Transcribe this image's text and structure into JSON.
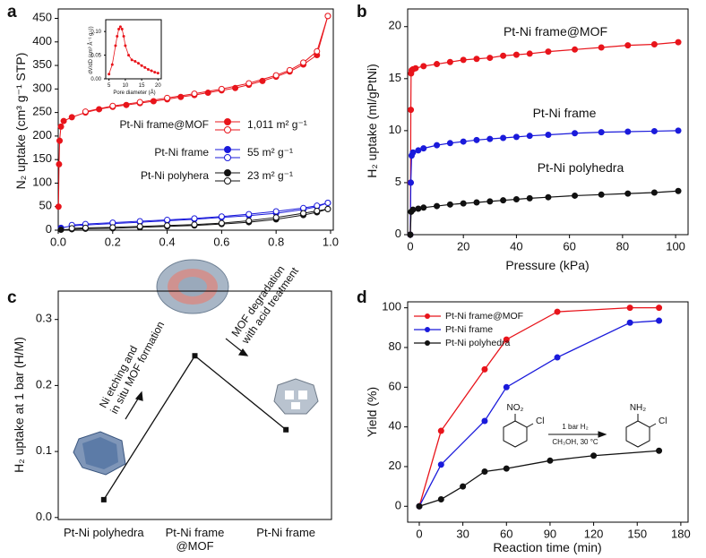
{
  "chart_data": [
    {
      "label": "a",
      "type": "line",
      "ylabel": "N₂ uptake (cm³ g⁻¹ STP)",
      "xlim": [
        0,
        1.01
      ],
      "ylim": [
        0,
        470
      ],
      "xticks": [
        {
          "value": 0,
          "label": "0.0"
        },
        0.2,
        0.4,
        0.6,
        0.8,
        {
          "value": 1,
          "label": "1.0"
        }
      ],
      "yticks": [
        0,
        50,
        100,
        150,
        200,
        250,
        300,
        350,
        400,
        450
      ],
      "series": [
        {
          "name": "Pt-Ni frame@MOF",
          "color": "#e8141b",
          "marker": "filled",
          "x": [
            0.001,
            0.003,
            0.005,
            0.01,
            0.02,
            0.05,
            0.1,
            0.15,
            0.2,
            0.25,
            0.3,
            0.35,
            0.4,
            0.45,
            0.5,
            0.55,
            0.6,
            0.65,
            0.7,
            0.75,
            0.8,
            0.85,
            0.9,
            0.95,
            0.99
          ],
          "values": [
            50,
            140,
            190,
            220,
            232,
            240,
            250,
            257,
            262,
            266,
            270,
            274,
            278,
            283,
            287,
            292,
            297,
            302,
            309,
            317,
            326,
            337,
            352,
            372,
            455
          ]
        },
        {
          "color": "#e8141b",
          "marker": "open",
          "x": [
            0.99,
            0.95,
            0.9,
            0.85,
            0.8,
            0.7,
            0.6,
            0.5,
            0.4,
            0.3,
            0.2,
            0.1
          ],
          "values": [
            455,
            380,
            356,
            340,
            329,
            312,
            300,
            290,
            281,
            272,
            264,
            252
          ]
        },
        {
          "name": "Pt-Ni frame",
          "color": "#1a1adb",
          "marker": "filled",
          "x": [
            0.01,
            0.05,
            0.1,
            0.2,
            0.3,
            0.4,
            0.5,
            0.6,
            0.7,
            0.8,
            0.9,
            0.95,
            0.99
          ],
          "values": [
            5,
            9,
            11,
            14,
            17,
            20,
            23,
            27,
            31,
            36,
            44,
            50,
            58
          ]
        },
        {
          "color": "#1a1adb",
          "marker": "open",
          "x": [
            0.99,
            0.95,
            0.9,
            0.8,
            0.7,
            0.6,
            0.5,
            0.4,
            0.3,
            0.2,
            0.1,
            0.05
          ],
          "values": [
            58,
            52,
            47,
            40,
            34,
            29,
            25,
            22,
            19,
            16,
            13,
            11
          ]
        },
        {
          "name": "Pt-Ni polyhera",
          "color": "#111111",
          "marker": "filled",
          "x": [
            0.01,
            0.05,
            0.1,
            0.2,
            0.3,
            0.4,
            0.5,
            0.6,
            0.7,
            0.8,
            0.9,
            0.95,
            0.99
          ],
          "values": [
            1,
            2,
            3,
            4,
            6,
            8,
            10,
            13,
            17,
            23,
            32,
            38,
            45
          ]
        },
        {
          "color": "#111111",
          "marker": "open",
          "x": [
            0.99,
            0.95,
            0.9,
            0.8,
            0.7,
            0.6,
            0.5,
            0.4,
            0.3,
            0.2,
            0.1,
            0.05
          ],
          "values": [
            45,
            41,
            36,
            27,
            20,
            15,
            12,
            10,
            8,
            6,
            5,
            4
          ]
        }
      ],
      "annotations": [
        "1,011 m² g⁻¹",
        "55 m² g⁻¹",
        "23 m² g⁻¹"
      ],
      "inset": {
        "type": "line",
        "xlabel": "Pore diameter (Å)",
        "ylabel": "dV/dD (cm³ Å⁻¹ g⁻¹)",
        "xlim": [
          4,
          21
        ],
        "ylim": [
          0,
          0.125
        ],
        "xticks": [
          5,
          10,
          15,
          20
        ],
        "yticks": [
          {
            "value": 0,
            "label": "0.00"
          },
          0.05,
          {
            "value": 0.1,
            "label": "0.10"
          }
        ],
        "series": [
          {
            "color": "#e8141b",
            "marker": "dot",
            "x": [
              5,
              6,
              7,
              7.5,
              8,
              8.5,
              9,
              9.5,
              10,
              11,
              12,
              13,
              14,
              15,
              16,
              17,
              18,
              19,
              20
            ],
            "values": [
              0.01,
              0.03,
              0.07,
              0.09,
              0.105,
              0.11,
              0.105,
              0.09,
              0.07,
              0.05,
              0.04,
              0.037,
              0.033,
              0.028,
              0.024,
              0.02,
              0.017,
              0.014,
              0.012
            ]
          }
        ]
      }
    },
    {
      "label": "b",
      "type": "line",
      "xlabel": "Pressure (kPa)",
      "ylabel": "H₂ uptake (ml/gPtNi)",
      "xlim": [
        -1,
        104.7
      ],
      "ylim": [
        0,
        21.7
      ],
      "xticks": [
        0,
        20,
        40,
        60,
        80,
        100
      ],
      "yticks": [
        0,
        5,
        10,
        15,
        20
      ],
      "series": [
        {
          "name": "Pt-Ni frame@MOF",
          "color": "#e8141b",
          "marker": "filled",
          "x": [
            0,
            0.1,
            0.2,
            0.3,
            0.5,
            1,
            2,
            5,
            10,
            15,
            20,
            25,
            30,
            35,
            40,
            45,
            52,
            62,
            72,
            82,
            92,
            101
          ],
          "values": [
            0,
            5,
            12,
            15.5,
            15.8,
            15.9,
            16.0,
            16.2,
            16.4,
            16.6,
            16.8,
            16.9,
            17.0,
            17.2,
            17.3,
            17.4,
            17.6,
            17.8,
            18.0,
            18.2,
            18.3,
            18.5
          ]
        },
        {
          "name": "Pt-Ni frame",
          "color": "#1a1adb",
          "marker": "filled",
          "x": [
            0,
            0.2,
            0.5,
            1,
            3,
            5,
            10,
            15,
            20,
            25,
            30,
            35,
            40,
            45,
            52,
            62,
            72,
            82,
            92,
            101
          ],
          "values": [
            0,
            5,
            7.6,
            7.9,
            8.1,
            8.3,
            8.6,
            8.8,
            8.95,
            9.1,
            9.2,
            9.3,
            9.4,
            9.5,
            9.6,
            9.75,
            9.85,
            9.9,
            9.95,
            10.0
          ]
        },
        {
          "name": "Pt-Ni polyhedra",
          "color": "#111111",
          "marker": "filled",
          "x": [
            0,
            0.3,
            1,
            3,
            5,
            10,
            15,
            20,
            25,
            30,
            35,
            40,
            45,
            52,
            62,
            72,
            82,
            92,
            101
          ],
          "values": [
            0,
            2.2,
            2.4,
            2.5,
            2.6,
            2.75,
            2.9,
            3.0,
            3.1,
            3.2,
            3.3,
            3.4,
            3.5,
            3.6,
            3.75,
            3.85,
            3.95,
            4.05,
            4.2
          ]
        }
      ]
    },
    {
      "label": "c",
      "type": "line",
      "ylabel": "H₂ uptake at 1 bar (H/M)",
      "categories": [
        "Pt-Ni polyhedra",
        "Pt-Ni frame\n@MOF",
        "Pt-Ni frame"
      ],
      "ylim": [
        -0.003,
        0.343
      ],
      "yticks": [
        {
          "value": 0,
          "label": "0.0"
        },
        0.1,
        0.2,
        0.3
      ],
      "series": [
        {
          "color": "#111111",
          "marker": "square",
          "values": [
            0.027,
            0.245,
            0.133
          ]
        }
      ],
      "annotations": [
        "Ni etching and\nin situ MOF formation",
        "MOF degradation\nwith acid treatment"
      ]
    },
    {
      "label": "d",
      "type": "line",
      "xlabel": "Reaction time (min)",
      "ylabel": "Yield (%)",
      "xlim": [
        -8,
        185
      ],
      "ylim": [
        -8,
        103
      ],
      "xticks": [
        0,
        30,
        60,
        90,
        120,
        150,
        180
      ],
      "yticks": [
        0,
        20,
        40,
        60,
        80,
        100
      ],
      "legend": "upper left",
      "series": [
        {
          "name": "Pt-Ni frame@MOF",
          "color": "#e8141b",
          "marker": "filled",
          "x": [
            0,
            15,
            45,
            60,
            95,
            145,
            165
          ],
          "values": [
            0,
            38,
            69,
            84,
            98,
            100,
            100
          ]
        },
        {
          "name": "Pt-Ni frame",
          "color": "#1a1adb",
          "marker": "filled",
          "x": [
            0,
            15,
            45,
            60,
            95,
            145,
            165
          ],
          "values": [
            0,
            21,
            43,
            60,
            75,
            92.5,
            93.5
          ]
        },
        {
          "name": "Pt-Ni polyhedra",
          "color": "#111111",
          "marker": "filled",
          "x": [
            0,
            15,
            30,
            45,
            60,
            90,
            120,
            165
          ],
          "values": [
            0,
            3.5,
            10,
            17.5,
            19,
            23,
            25.5,
            28
          ]
        }
      ],
      "scheme": [
        "NO₂",
        "Cl",
        "1 bar H₂",
        "CH₃OH, 30 °C",
        "NH₂",
        "Cl"
      ]
    }
  ]
}
